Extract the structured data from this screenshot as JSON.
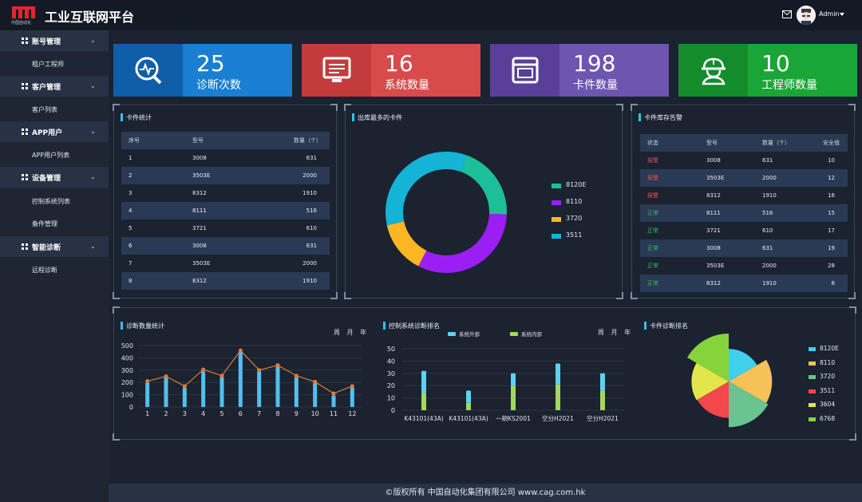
{
  "header": {
    "logo_sub": "中国自动化",
    "title": "工业互联网平台",
    "user": "Admin"
  },
  "sidebar": {
    "groups": [
      {
        "label": "账号管理",
        "items": [
          "租户工程师"
        ]
      },
      {
        "label": "客户管理",
        "items": [
          "客户列表"
        ]
      },
      {
        "label": "APP用户",
        "items": [
          "APP用户列表"
        ]
      },
      {
        "label": "设备管理",
        "items": [
          "控制系统列表",
          "备件管理"
        ]
      },
      {
        "label": "智能诊断",
        "items": [
          "远程诊断"
        ]
      }
    ]
  },
  "stats": [
    {
      "value": "25",
      "label": "诊断次数",
      "icon": "diagnosis-icon",
      "dark": "#0f5ea8",
      "light": "#1a7ed1"
    },
    {
      "value": "16",
      "label": "系统数量",
      "icon": "monitor-icon",
      "dark": "#c33c3c",
      "light": "#d84b4b"
    },
    {
      "value": "198",
      "label": "卡件数量",
      "icon": "card-icon",
      "dark": "#5a3f99",
      "light": "#6d55b0"
    },
    {
      "value": "10",
      "label": "工程师数量",
      "icon": "engineer-icon",
      "dark": "#148c2c",
      "light": "#1aa636"
    }
  ],
  "card_stats": {
    "title": "卡件统计",
    "headers": [
      "序号",
      "型号",
      "数量（个）"
    ],
    "rows": [
      [
        "1",
        "3008",
        "631"
      ],
      [
        "2",
        "3503E",
        "2000"
      ],
      [
        "3",
        "8312",
        "1910"
      ],
      [
        "4",
        "8111",
        "516"
      ],
      [
        "5",
        "3721",
        "610"
      ],
      [
        "6",
        "3008",
        "631"
      ],
      [
        "7",
        "3503E",
        "2000"
      ],
      [
        "8",
        "8312",
        "1910"
      ]
    ]
  },
  "top_cards": {
    "title": "出库最多的卡件"
  },
  "inventory": {
    "title": "卡件库存告警",
    "headers": [
      "状态",
      "型号",
      "数量（个）",
      "安全值"
    ],
    "rows": [
      [
        "报警",
        "3008",
        "631",
        "10"
      ],
      [
        "报警",
        "3503E",
        "2000",
        "12"
      ],
      [
        "报警",
        "8312",
        "1910",
        "16"
      ],
      [
        "正常",
        "8111",
        "516",
        "15"
      ],
      [
        "正常",
        "3721",
        "610",
        "17"
      ],
      [
        "正常",
        "3008",
        "631",
        "19"
      ],
      [
        "正常",
        "3503E",
        "2000",
        "28"
      ],
      [
        "正常",
        "8312",
        "1910",
        "8"
      ]
    ],
    "status_colors": {
      "报警": "#e0504e",
      "正常": "#2fc25b"
    }
  },
  "diag_stats": {
    "title": "诊断数量统计",
    "period": "周 月 年"
  },
  "system_rank": {
    "title": "控制系统诊断排名",
    "period": "周 月 年"
  },
  "card_rank": {
    "title": "卡件诊断排名"
  },
  "footer": "©版权所有 中国自动化集团有限公司 www.cag.com.hk",
  "chart_data": [
    {
      "type": "pie",
      "title": "出库最多的卡件",
      "style": "donut",
      "labels": [
        "8120E",
        "8110",
        "3720",
        "3511"
      ],
      "values": [
        20,
        32,
        14,
        34
      ],
      "colors": [
        "#1dbf9a",
        "#9b1ef4",
        "#fbb623",
        "#15b3d6"
      ]
    },
    {
      "type": "bar",
      "title": "诊断数量统计",
      "categories": [
        "1",
        "2",
        "3",
        "4",
        "5",
        "6",
        "7",
        "8",
        "9",
        "10",
        "11",
        "12"
      ],
      "values": [
        200,
        240,
        160,
        290,
        245,
        450,
        290,
        330,
        245,
        195,
        95,
        160
      ],
      "line_values": [
        210,
        250,
        170,
        305,
        255,
        460,
        300,
        340,
        255,
        205,
        110,
        170
      ],
      "ylim": [
        0,
        500
      ],
      "yticks": [
        "0",
        "100",
        "200",
        "300",
        "400",
        "500"
      ],
      "bar_color": "#4fc1ef",
      "line_color": "#e07b39"
    },
    {
      "type": "bar",
      "title": "控制系统诊断排名",
      "categories": [
        "K43101(43A)",
        "K43101(43A)",
        "一期KS2001",
        "空分H2021",
        "空分H2021"
      ],
      "series": [
        {
          "name": "系统外部",
          "values": [
            18,
            10,
            10,
            17,
            14
          ],
          "color": "#5ed0f1"
        },
        {
          "name": "系统内部",
          "values": [
            14,
            6,
            20,
            21,
            16
          ],
          "color": "#a3d85d"
        }
      ],
      "ylim": [
        0,
        50
      ],
      "yticks": [
        "0",
        "10",
        "20",
        "30",
        "40",
        "50"
      ],
      "stacked": true
    },
    {
      "type": "pie",
      "title": "卡件诊断排名",
      "style": "rose",
      "labels": [
        "8120E",
        "8110",
        "3720",
        "3511",
        "3604",
        "6768"
      ],
      "values": [
        24,
        38,
        41,
        29,
        30,
        44
      ],
      "colors": [
        "#3fd0ec",
        "#f5c258",
        "#69c48f",
        "#f2474c",
        "#e2e64b",
        "#86d33c"
      ]
    }
  ]
}
